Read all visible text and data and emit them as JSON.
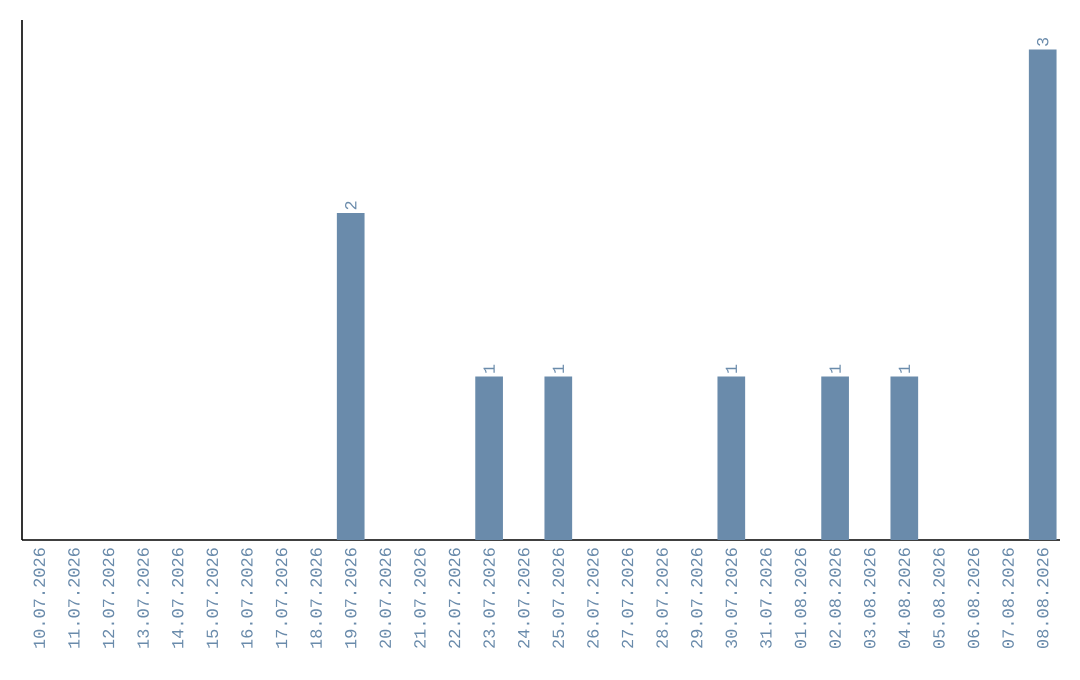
{
  "chart_data": {
    "type": "bar",
    "categories": [
      "10.07.2026",
      "11.07.2026",
      "12.07.2026",
      "13.07.2026",
      "14.07.2026",
      "15.07.2026",
      "16.07.2026",
      "17.07.2026",
      "18.07.2026",
      "19.07.2026",
      "20.07.2026",
      "21.07.2026",
      "22.07.2026",
      "23.07.2026",
      "24.07.2026",
      "25.07.2026",
      "26.07.2026",
      "27.07.2026",
      "28.07.2026",
      "29.07.2026",
      "30.07.2026",
      "31.07.2026",
      "01.08.2026",
      "02.08.2026",
      "03.08.2026",
      "04.08.2026",
      "05.08.2026",
      "06.08.2026",
      "07.08.2026",
      "08.08.2026"
    ],
    "values": [
      0,
      0,
      0,
      0,
      0,
      0,
      0,
      0,
      0,
      2,
      0,
      0,
      0,
      1,
      0,
      1,
      0,
      0,
      0,
      0,
      1,
      0,
      0,
      1,
      0,
      1,
      0,
      0,
      0,
      3
    ],
    "value_labels": [
      null,
      null,
      null,
      null,
      null,
      null,
      null,
      null,
      null,
      "2",
      null,
      null,
      null,
      "1",
      null,
      "1",
      null,
      null,
      null,
      null,
      "1",
      null,
      null,
      "1",
      null,
      "1",
      null,
      null,
      null,
      "3"
    ],
    "color": "#6a8bab",
    "tick_labels": "x"
  }
}
